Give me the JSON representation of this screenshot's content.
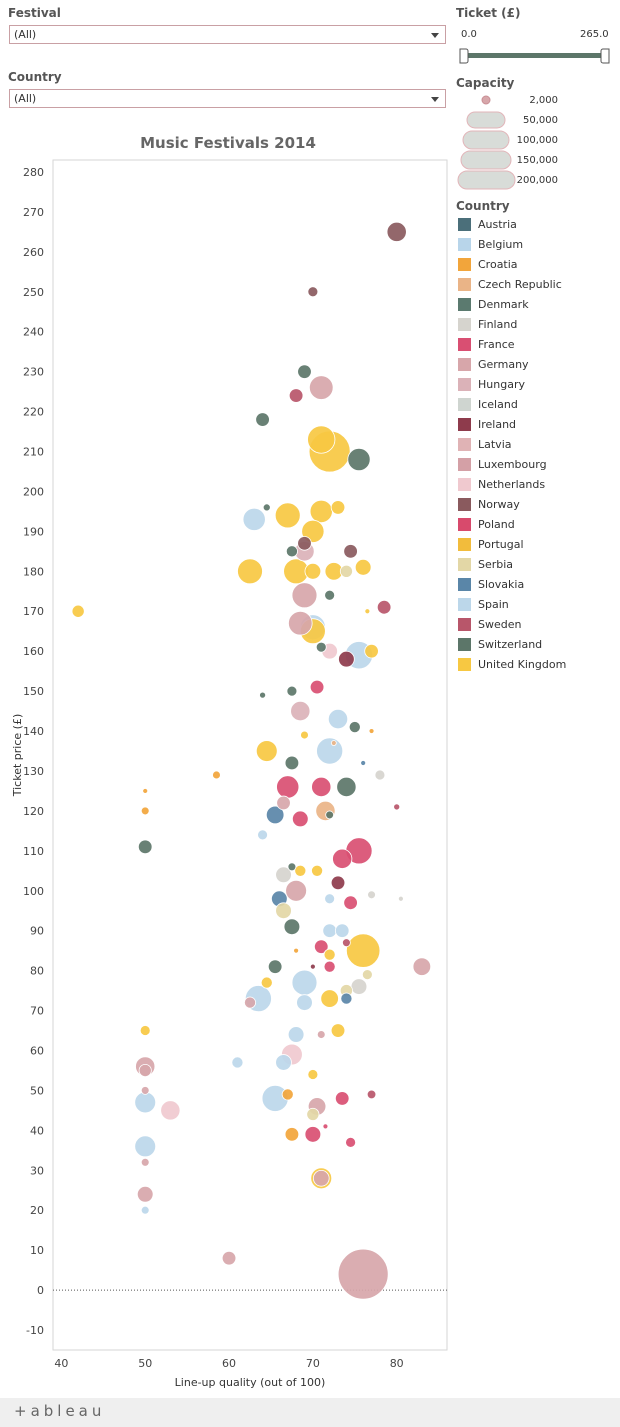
{
  "filters": {
    "festival": {
      "label": "Festival",
      "value": "(All)"
    },
    "country": {
      "label": "Country",
      "value": "(All)"
    }
  },
  "ticket_filter": {
    "label": "Ticket (£)",
    "min": "0.0",
    "max": "265.0"
  },
  "capacity_legend": {
    "title": "Capacity",
    "items": [
      "2,000",
      "50,000",
      "100,000",
      "150,000",
      "200,000"
    ]
  },
  "country_legend": {
    "title": "Country",
    "items": [
      {
        "name": "Austria",
        "color": "#4b6f7a"
      },
      {
        "name": "Belgium",
        "color": "#b8d5ea"
      },
      {
        "name": "Croatia",
        "color": "#f2a53b"
      },
      {
        "name": "Czech Republic",
        "color": "#eab487"
      },
      {
        "name": "Denmark",
        "color": "#5b7a6f"
      },
      {
        "name": "Finland",
        "color": "#d6d4ce"
      },
      {
        "name": "France",
        "color": "#d94f72"
      },
      {
        "name": "Germany",
        "color": "#d7a6aa"
      },
      {
        "name": "Hungary",
        "color": "#dbb2b8"
      },
      {
        "name": "Iceland",
        "color": "#cfd5d0"
      },
      {
        "name": "Ireland",
        "color": "#8e3b4c"
      },
      {
        "name": "Latvia",
        "color": "#e0b3b5"
      },
      {
        "name": "Luxembourg",
        "color": "#d4a0a6"
      },
      {
        "name": "Netherlands",
        "color": "#f0c9cf"
      },
      {
        "name": "Norway",
        "color": "#8a5a5e"
      },
      {
        "name": "Poland",
        "color": "#d84a6c"
      },
      {
        "name": "Portugal",
        "color": "#f2bc3c"
      },
      {
        "name": "Serbia",
        "color": "#e3d7a6"
      },
      {
        "name": "Slovakia",
        "color": "#5a86a8"
      },
      {
        "name": "Spain",
        "color": "#bcd7ea"
      },
      {
        "name": "Sweden",
        "color": "#b8566a"
      },
      {
        "name": "Switzerland",
        "color": "#5c7669"
      },
      {
        "name": "United Kingdom",
        "color": "#f7c842"
      }
    ]
  },
  "footer": {
    "logo": "+ableau"
  },
  "chart_data": {
    "type": "scatter",
    "title": "Music Festivals 2014",
    "xlabel": "Line-up quality (out of 100)",
    "ylabel": "Ticket price (£)",
    "xlim": [
      39,
      86
    ],
    "ylim": [
      -15,
      283
    ],
    "xticks": [
      40,
      50,
      60,
      70,
      80
    ],
    "yticks": [
      -10,
      0,
      10,
      20,
      30,
      40,
      50,
      60,
      70,
      80,
      90,
      100,
      110,
      120,
      130,
      140,
      150,
      160,
      170,
      180,
      190,
      200,
      210,
      220,
      230,
      240,
      250,
      260,
      270,
      280
    ],
    "reference_line_y": 0,
    "grid": true,
    "points": [
      {
        "x": 80,
        "y": 265,
        "c": "Norway",
        "cap": 30000
      },
      {
        "x": 70,
        "y": 250,
        "c": "Norway",
        "cap": 8000
      },
      {
        "x": 69,
        "y": 230,
        "c": "Switzerland",
        "cap": 15000
      },
      {
        "x": 71,
        "y": 226,
        "c": "Germany",
        "cap": 45000
      },
      {
        "x": 68,
        "y": 224,
        "c": "Sweden",
        "cap": 15000
      },
      {
        "x": 64,
        "y": 218,
        "c": "Switzerland",
        "cap": 15000
      },
      {
        "x": 71,
        "y": 213,
        "c": "United Kingdom",
        "cap": 60000
      },
      {
        "x": 72,
        "y": 210,
        "c": "United Kingdom",
        "cap": 135000
      },
      {
        "x": 75.5,
        "y": 208,
        "c": "Switzerland",
        "cap": 40000
      },
      {
        "x": 64.5,
        "y": 196,
        "c": "Switzerland",
        "cap": 4000
      },
      {
        "x": 73,
        "y": 196,
        "c": "United Kingdom",
        "cap": 15000
      },
      {
        "x": 71,
        "y": 195,
        "c": "United Kingdom",
        "cap": 40000
      },
      {
        "x": 63,
        "y": 193,
        "c": "Spain",
        "cap": 40000
      },
      {
        "x": 67,
        "y": 194,
        "c": "United Kingdom",
        "cap": 50000
      },
      {
        "x": 70,
        "y": 190,
        "c": "United Kingdom",
        "cap": 40000
      },
      {
        "x": 69,
        "y": 187,
        "c": "Norway",
        "cap": 15000
      },
      {
        "x": 67.5,
        "y": 185,
        "c": "Switzerland",
        "cap": 10000
      },
      {
        "x": 69,
        "y": 185,
        "c": "Hungary",
        "cap": 30000
      },
      {
        "x": 74.5,
        "y": 185,
        "c": "Norway",
        "cap": 15000
      },
      {
        "x": 74,
        "y": 180,
        "c": "Serbia",
        "cap": 12000
      },
      {
        "x": 62.5,
        "y": 180,
        "c": "United Kingdom",
        "cap": 50000
      },
      {
        "x": 68,
        "y": 180,
        "c": "United Kingdom",
        "cap": 50000
      },
      {
        "x": 70,
        "y": 180,
        "c": "United Kingdom",
        "cap": 20000
      },
      {
        "x": 72.5,
        "y": 180,
        "c": "United Kingdom",
        "cap": 25000
      },
      {
        "x": 76,
        "y": 181,
        "c": "United Kingdom",
        "cap": 20000
      },
      {
        "x": 69,
        "y": 174,
        "c": "Germany",
        "cap": 50000
      },
      {
        "x": 72,
        "y": 174,
        "c": "Switzerland",
        "cap": 8000
      },
      {
        "x": 42,
        "y": 170,
        "c": "United Kingdom",
        "cap": 12000
      },
      {
        "x": 76.5,
        "y": 170,
        "c": "United Kingdom",
        "cap": 2000
      },
      {
        "x": 78.5,
        "y": 171,
        "c": "Sweden",
        "cap": 15000
      },
      {
        "x": 68.5,
        "y": 167,
        "c": "Germany",
        "cap": 45000
      },
      {
        "x": 70,
        "y": 166,
        "c": "Spain",
        "cap": 50000
      },
      {
        "x": 70,
        "y": 165,
        "c": "United Kingdom",
        "cap": 50000
      },
      {
        "x": 71,
        "y": 161,
        "c": "Switzerland",
        "cap": 8000
      },
      {
        "x": 72,
        "y": 160,
        "c": "Netherlands",
        "cap": 20000
      },
      {
        "x": 74,
        "y": 158,
        "c": "Ireland",
        "cap": 20000
      },
      {
        "x": 75.5,
        "y": 159,
        "c": "Spain",
        "cap": 60000
      },
      {
        "x": 77,
        "y": 160,
        "c": "United Kingdom",
        "cap": 15000
      },
      {
        "x": 70.5,
        "y": 151,
        "c": "France",
        "cap": 15000
      },
      {
        "x": 64,
        "y": 149,
        "c": "Switzerland",
        "cap": 3000
      },
      {
        "x": 67.5,
        "y": 150,
        "c": "Switzerland",
        "cap": 8000
      },
      {
        "x": 68.5,
        "y": 145,
        "c": "Hungary",
        "cap": 30000
      },
      {
        "x": 73,
        "y": 143,
        "c": "Spain",
        "cap": 30000
      },
      {
        "x": 75,
        "y": 141,
        "c": "Switzerland",
        "cap": 10000
      },
      {
        "x": 69,
        "y": 139,
        "c": "United Kingdom",
        "cap": 5000
      },
      {
        "x": 77,
        "y": 140,
        "c": "Croatia",
        "cap": 2000
      },
      {
        "x": 64.5,
        "y": 135,
        "c": "United Kingdom",
        "cap": 35000
      },
      {
        "x": 72,
        "y": 135,
        "c": "Spain",
        "cap": 55000
      },
      {
        "x": 72.5,
        "y": 137,
        "c": "Czech Republic",
        "cap": 2000
      },
      {
        "x": 67.5,
        "y": 132,
        "c": "Switzerland",
        "cap": 15000
      },
      {
        "x": 76,
        "y": 132,
        "c": "Slovakia",
        "cap": 2000
      },
      {
        "x": 50,
        "y": 125,
        "c": "Croatia",
        "cap": 2000
      },
      {
        "x": 58.5,
        "y": 129,
        "c": "Croatia",
        "cap": 5000
      },
      {
        "x": 67,
        "y": 126,
        "c": "France",
        "cap": 40000
      },
      {
        "x": 71,
        "y": 126,
        "c": "France",
        "cap": 30000
      },
      {
        "x": 74,
        "y": 126,
        "c": "Switzerland",
        "cap": 30000
      },
      {
        "x": 78,
        "y": 129,
        "c": "Finland",
        "cap": 8000
      },
      {
        "x": 50,
        "y": 120,
        "c": "Croatia",
        "cap": 5000
      },
      {
        "x": 65.5,
        "y": 119,
        "c": "Slovakia",
        "cap": 25000
      },
      {
        "x": 66.5,
        "y": 122,
        "c": "Germany",
        "cap": 15000
      },
      {
        "x": 68.5,
        "y": 118,
        "c": "France",
        "cap": 20000
      },
      {
        "x": 71.5,
        "y": 120,
        "c": "Czech Republic",
        "cap": 30000
      },
      {
        "x": 72,
        "y": 119,
        "c": "Switzerland",
        "cap": 5000
      },
      {
        "x": 80,
        "y": 121,
        "c": "Sweden",
        "cap": 3000
      },
      {
        "x": 64,
        "y": 114,
        "c": "Spain",
        "cap": 8000
      },
      {
        "x": 50,
        "y": 111,
        "c": "Switzerland",
        "cap": 15000
      },
      {
        "x": 73.5,
        "y": 108,
        "c": "France",
        "cap": 30000
      },
      {
        "x": 75.5,
        "y": 110,
        "c": "France",
        "cap": 55000
      },
      {
        "x": 67.5,
        "y": 106,
        "c": "Switzerland",
        "cap": 5000
      },
      {
        "x": 68.5,
        "y": 105,
        "c": "United Kingdom",
        "cap": 10000
      },
      {
        "x": 70.5,
        "y": 105,
        "c": "United Kingdom",
        "cap": 10000
      },
      {
        "x": 66.5,
        "y": 104,
        "c": "Finland",
        "cap": 20000
      },
      {
        "x": 68,
        "y": 100,
        "c": "Germany",
        "cap": 35000
      },
      {
        "x": 73,
        "y": 102,
        "c": "Ireland",
        "cap": 15000
      },
      {
        "x": 72,
        "y": 98,
        "c": "Spain",
        "cap": 8000
      },
      {
        "x": 66,
        "y": 98,
        "c": "Slovakia",
        "cap": 20000
      },
      {
        "x": 77,
        "y": 99,
        "c": "Finland",
        "cap": 5000
      },
      {
        "x": 80.5,
        "y": 98,
        "c": "Finland",
        "cap": 2000
      },
      {
        "x": 74.5,
        "y": 97,
        "c": "France",
        "cap": 15000
      },
      {
        "x": 66.5,
        "y": 95,
        "c": "Serbia",
        "cap": 20000
      },
      {
        "x": 67.5,
        "y": 91,
        "c": "Switzerland",
        "cap": 20000
      },
      {
        "x": 72,
        "y": 90,
        "c": "Spain",
        "cap": 15000
      },
      {
        "x": 73.5,
        "y": 90,
        "c": "Spain",
        "cap": 15000
      },
      {
        "x": 71,
        "y": 86,
        "c": "France",
        "cap": 15000
      },
      {
        "x": 68,
        "y": 85,
        "c": "Croatia",
        "cap": 2000
      },
      {
        "x": 76,
        "y": 85,
        "c": "United Kingdom",
        "cap": 90000
      },
      {
        "x": 72,
        "y": 84,
        "c": "United Kingdom",
        "cap": 10000
      },
      {
        "x": 74,
        "y": 87,
        "c": "Sweden",
        "cap": 5000
      },
      {
        "x": 83,
        "y": 81,
        "c": "Germany",
        "cap": 25000
      },
      {
        "x": 65.5,
        "y": 81,
        "c": "Switzerland",
        "cap": 15000
      },
      {
        "x": 70,
        "y": 81,
        "c": "Ireland",
        "cap": 2000
      },
      {
        "x": 72,
        "y": 81,
        "c": "France",
        "cap": 10000
      },
      {
        "x": 76.5,
        "y": 79,
        "c": "Serbia",
        "cap": 8000
      },
      {
        "x": 64.5,
        "y": 77,
        "c": "United Kingdom",
        "cap": 10000
      },
      {
        "x": 69,
        "y": 77,
        "c": "Spain",
        "cap": 50000
      },
      {
        "x": 75.5,
        "y": 76,
        "c": "Finland",
        "cap": 20000
      },
      {
        "x": 74,
        "y": 75,
        "c": "Serbia",
        "cap": 12000
      },
      {
        "x": 74,
        "y": 73,
        "c": "Slovakia",
        "cap": 10000
      },
      {
        "x": 72,
        "y": 73,
        "c": "United Kingdom",
        "cap": 25000
      },
      {
        "x": 63.5,
        "y": 73,
        "c": "Spain",
        "cap": 55000
      },
      {
        "x": 62.5,
        "y": 72,
        "c": "Germany",
        "cap": 10000
      },
      {
        "x": 69,
        "y": 72,
        "c": "Spain",
        "cap": 20000
      },
      {
        "x": 73,
        "y": 65,
        "c": "United Kingdom",
        "cap": 15000
      },
      {
        "x": 50,
        "y": 65,
        "c": "United Kingdom",
        "cap": 8000
      },
      {
        "x": 68,
        "y": 64,
        "c": "Spain",
        "cap": 20000
      },
      {
        "x": 71,
        "y": 64,
        "c": "Germany",
        "cap": 5000
      },
      {
        "x": 67.5,
        "y": 59,
        "c": "Netherlands",
        "cap": 35000
      },
      {
        "x": 61,
        "y": 57,
        "c": "Spain",
        "cap": 10000
      },
      {
        "x": 66.5,
        "y": 57,
        "c": "Spain",
        "cap": 20000
      },
      {
        "x": 50,
        "y": 56,
        "c": "Germany",
        "cap": 30000
      },
      {
        "x": 50,
        "y": 55,
        "c": "Germany",
        "cap": 12000
      },
      {
        "x": 70,
        "y": 54,
        "c": "United Kingdom",
        "cap": 8000
      },
      {
        "x": 50,
        "y": 50,
        "c": "Germany",
        "cap": 5000
      },
      {
        "x": 67,
        "y": 49,
        "c": "Croatia",
        "cap": 10000
      },
      {
        "x": 65.5,
        "y": 48,
        "c": "Spain",
        "cap": 55000
      },
      {
        "x": 73.5,
        "y": 48,
        "c": "France",
        "cap": 15000
      },
      {
        "x": 77,
        "y": 49,
        "c": "Sweden",
        "cap": 6000
      },
      {
        "x": 50,
        "y": 47,
        "c": "Spain",
        "cap": 35000
      },
      {
        "x": 53,
        "y": 45,
        "c": "Netherlands",
        "cap": 30000
      },
      {
        "x": 70.5,
        "y": 46,
        "c": "Germany",
        "cap": 25000
      },
      {
        "x": 70,
        "y": 44,
        "c": "Serbia",
        "cap": 12000
      },
      {
        "x": 67.5,
        "y": 39,
        "c": "Croatia",
        "cap": 15000
      },
      {
        "x": 70,
        "y": 39,
        "c": "France",
        "cap": 20000
      },
      {
        "x": 71.5,
        "y": 41,
        "c": "France",
        "cap": 2000
      },
      {
        "x": 74.5,
        "y": 37,
        "c": "France",
        "cap": 8000
      },
      {
        "x": 50,
        "y": 36,
        "c": "Spain",
        "cap": 35000
      },
      {
        "x": 50,
        "y": 32,
        "c": "Germany",
        "cap": 5000
      },
      {
        "x": 71,
        "y": 28,
        "c": "United Kingdom",
        "cap": 35000
      },
      {
        "x": 71,
        "y": 28,
        "c": "Germany",
        "cap": 20000
      },
      {
        "x": 50,
        "y": 24,
        "c": "Germany",
        "cap": 20000
      },
      {
        "x": 50,
        "y": 20,
        "c": "Spain",
        "cap": 5000
      },
      {
        "x": 60,
        "y": 8,
        "c": "Germany",
        "cap": 15000
      },
      {
        "x": 76,
        "y": 4,
        "c": "Germany",
        "cap": 200000
      }
    ]
  }
}
